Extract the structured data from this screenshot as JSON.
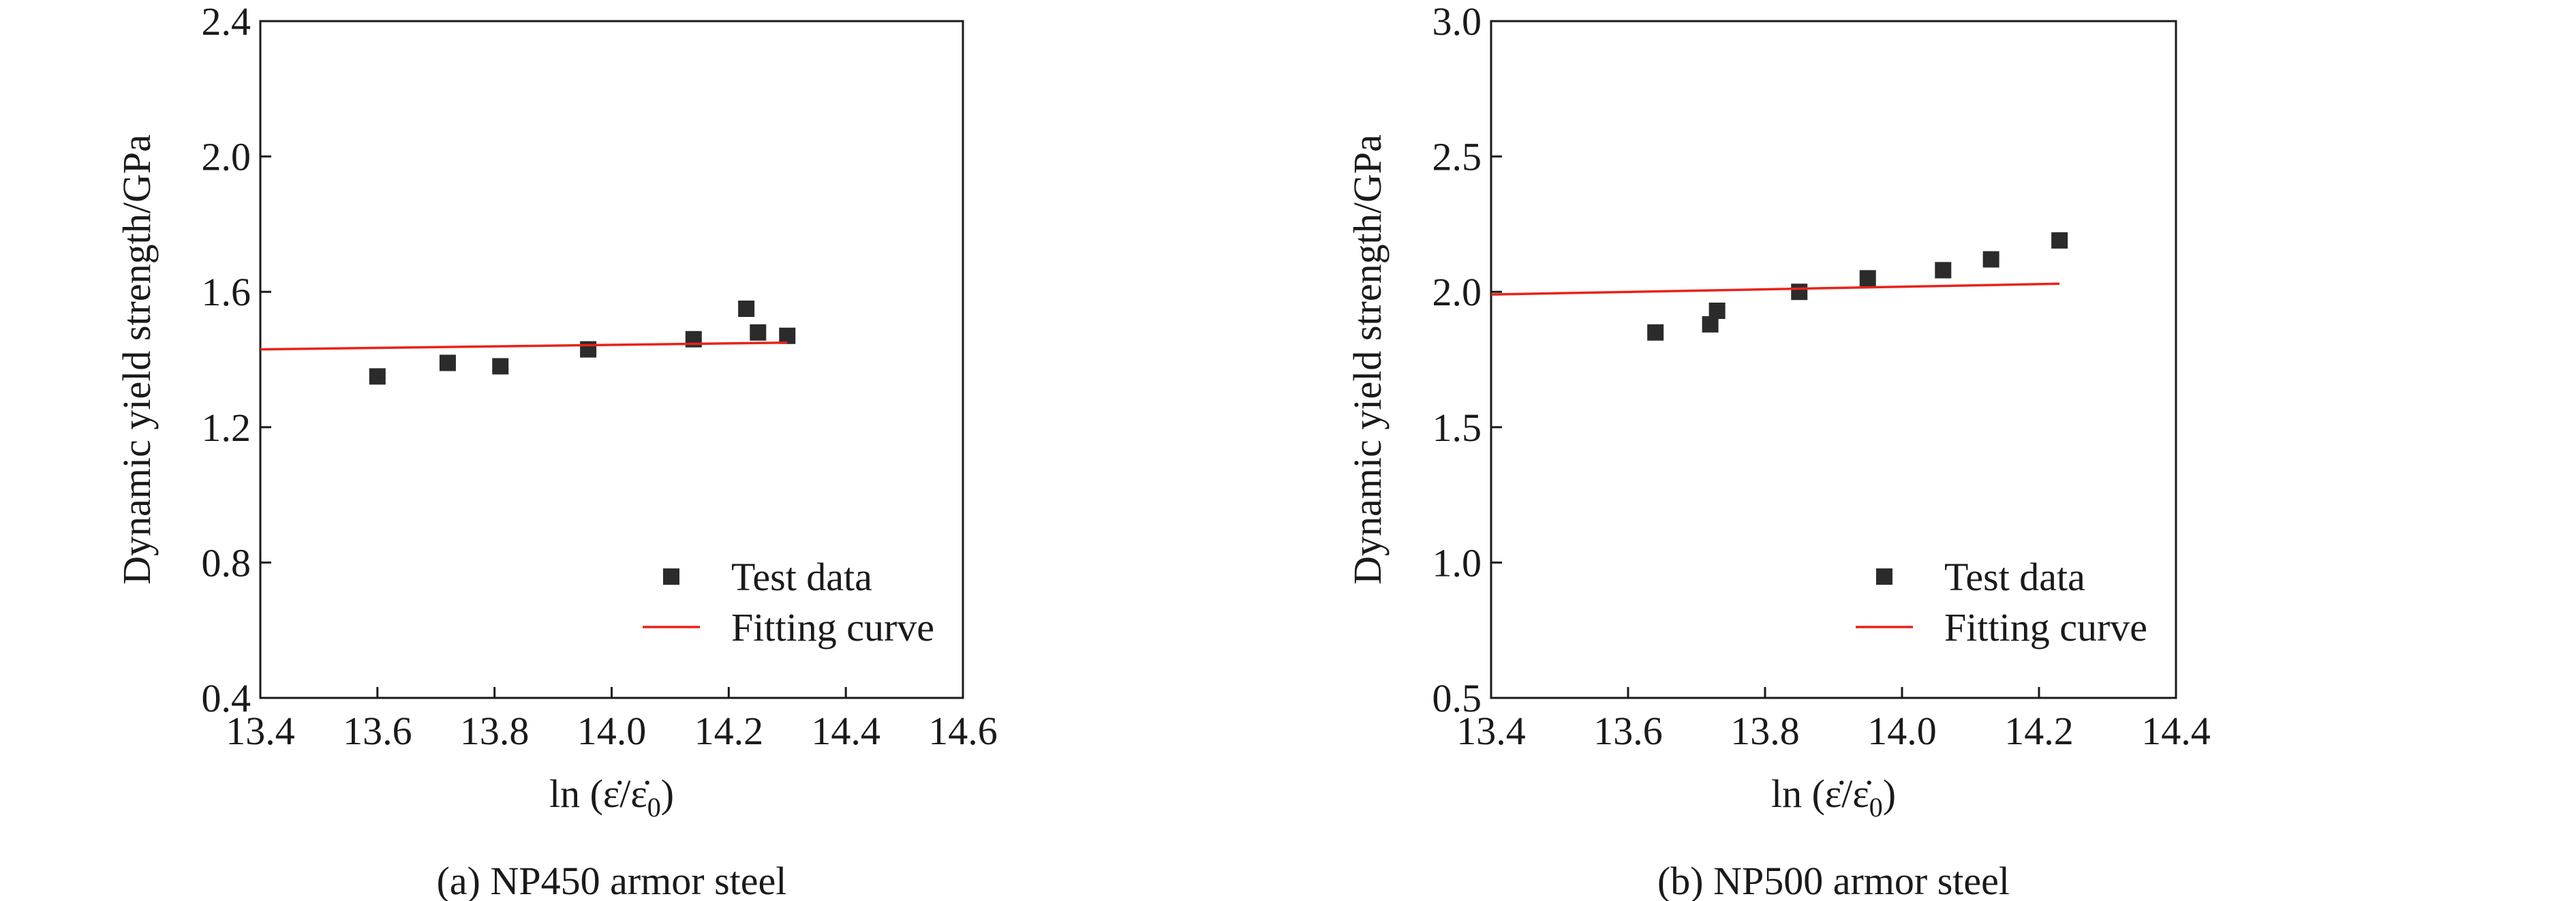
{
  "chart_data": [
    {
      "type": "scatter",
      "caption": "(a) NP450 armor steel",
      "xlabel": "ln (ε̇/ε̇",
      "xlabel_sub": "0",
      "xlabel_close": ")",
      "ylabel": "Dynamic yield strength/GPa",
      "xlim": [
        13.4,
        14.6
      ],
      "ylim": [
        0.4,
        2.4
      ],
      "xticks": [
        13.4,
        13.6,
        13.8,
        14.0,
        14.2,
        14.4,
        14.6
      ],
      "yticks": [
        0.4,
        0.8,
        1.2,
        1.6,
        2.0,
        2.4
      ],
      "xtick_labels": [
        "13.4",
        "13.6",
        "13.8",
        "14.0",
        "14.2",
        "14.4",
        "14.6"
      ],
      "ytick_labels": [
        "0.4",
        "0.8",
        "1.2",
        "1.6",
        "2.0",
        "2.4"
      ],
      "grid": false,
      "legend_position": "bottom-right",
      "series": [
        {
          "name": "Test data",
          "kind": "markers",
          "x": [
            13.6,
            13.72,
            13.81,
            13.96,
            14.14,
            14.23,
            14.25,
            14.3
          ],
          "y": [
            1.35,
            1.39,
            1.38,
            1.43,
            1.46,
            1.55,
            1.48,
            1.47
          ],
          "color": "#2b2b2b"
        },
        {
          "name": "Fitting curve",
          "kind": "line",
          "x": [
            13.4,
            14.3
          ],
          "y": [
            1.43,
            1.45
          ],
          "color": "#e8231b"
        }
      ]
    },
    {
      "type": "scatter",
      "caption": "(b) NP500 armor steel",
      "xlabel": "ln (ε̇/ε̇",
      "xlabel_sub": "0",
      "xlabel_close": ")",
      "ylabel": "Dynamic yield strength/GPa",
      "xlim": [
        13.4,
        14.4
      ],
      "ylim": [
        0.5,
        3.0
      ],
      "xticks": [
        13.4,
        13.6,
        13.8,
        14.0,
        14.2,
        14.4
      ],
      "yticks": [
        0.5,
        1.0,
        1.5,
        2.0,
        2.5,
        3.0
      ],
      "xtick_labels": [
        "13.4",
        "13.6",
        "13.8",
        "14.0",
        "14.2",
        "14.4"
      ],
      "ytick_labels": [
        "0.5",
        "1.0",
        "1.5",
        "2.0",
        "2.5",
        "3.0"
      ],
      "grid": false,
      "legend_position": "bottom-right",
      "series": [
        {
          "name": "Test data",
          "kind": "markers",
          "x": [
            13.64,
            13.72,
            13.73,
            13.85,
            13.95,
            14.06,
            14.13,
            14.23
          ],
          "y": [
            1.85,
            1.88,
            1.93,
            2.0,
            2.05,
            2.08,
            2.12,
            2.19
          ],
          "color": "#2b2b2b"
        },
        {
          "name": "Fitting curve",
          "kind": "line",
          "x": [
            13.4,
            14.23
          ],
          "y": [
            1.99,
            2.03
          ],
          "color": "#e8231b"
        }
      ]
    }
  ]
}
